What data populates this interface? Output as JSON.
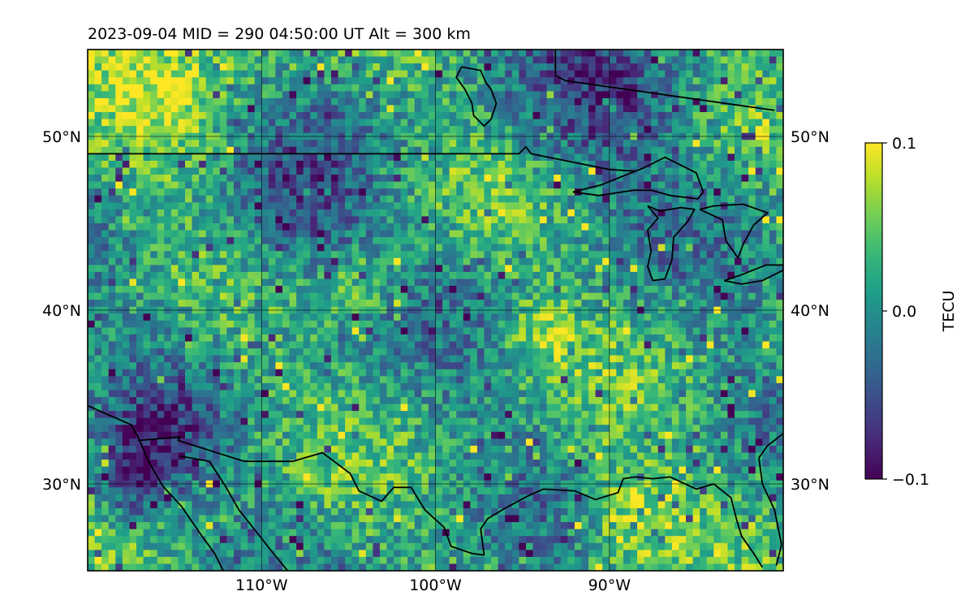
{
  "chart_data": {
    "type": "heatmap",
    "title": "2023-09-04  MID = 290    04:50:00  UT  Alt = 300 km",
    "map_projection": "PlateCarree",
    "lon_range": [
      -120,
      -80
    ],
    "lat_range": [
      25,
      55
    ],
    "x_ticks": [
      {
        "value": -110,
        "label": "110°W"
      },
      {
        "value": -100,
        "label": "100°W"
      },
      {
        "value": -90,
        "label": "90°W"
      }
    ],
    "y_ticks": [
      {
        "value": 30,
        "label": "30°N"
      },
      {
        "value": 40,
        "label": "40°N"
      },
      {
        "value": 50,
        "label": "50°N"
      }
    ],
    "gridlines": true,
    "colormap": "viridis",
    "colormap_stops": [
      "#440154",
      "#482878",
      "#3e4989",
      "#31688e",
      "#26828e",
      "#1f9e89",
      "#35b779",
      "#6ece58",
      "#b5de2b",
      "#fde725"
    ],
    "colorbar": {
      "label": "TECU",
      "min": -0.1,
      "max": 0.1,
      "ticks": [
        {
          "value": 0.1,
          "label": "0.1"
        },
        {
          "value": 0.0,
          "label": "0.0"
        },
        {
          "value": -0.1,
          "label": "−0.1"
        }
      ]
    },
    "coastline_color": "#000000",
    "field_grid_deg": 0.4,
    "field_summary": "Mostly near-zero TEC perturbation (teal/green) with scattered negative patches (purple) over central Rockies/plains and near 30°N 118°W, and positive spots (yellow) around 40°N 105°W, 38°N 94°W and 27°N 88°W."
  }
}
